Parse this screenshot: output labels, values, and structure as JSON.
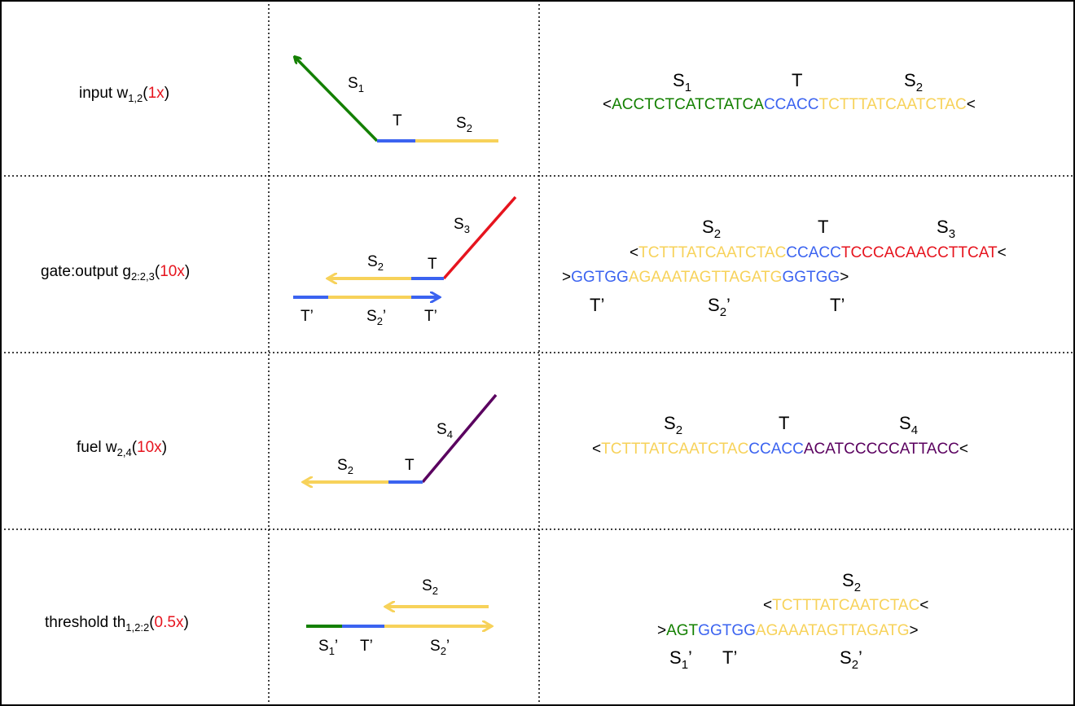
{
  "colors": {
    "green": "#138000",
    "blue": "#3b63f0",
    "yellow": "#f7d25a",
    "red": "#e6141e",
    "purple": "#5a005f",
    "black": "#000000"
  },
  "rows": [
    {
      "name": {
        "prefix": "input  w",
        "sub": "1,2",
        "open": "(",
        "mult": "1x",
        "close": ")"
      },
      "diagram_labels": {
        "s1": {
          "base": "S",
          "sub": "1"
        },
        "t": {
          "base": "T"
        },
        "s2": {
          "base": "S",
          "sub": "2"
        }
      },
      "seq_headers": {
        "a": {
          "base": "S",
          "sub": "1"
        },
        "b": {
          "base": "T"
        },
        "c": {
          "base": "S",
          "sub": "2"
        }
      },
      "sequence": {
        "start": "<",
        "green": "ACCTCTCATCTATCA",
        "blue": "CCACC",
        "yellow": "TCTTTATCAATCTAC",
        "end": "<"
      }
    },
    {
      "name": {
        "prefix": "gate:output  g",
        "sub": "2:2,3",
        "open": "(",
        "mult": "10x",
        "close": ")"
      },
      "diagram_labels": {
        "s3": {
          "base": "S",
          "sub": "3"
        },
        "s2": {
          "base": "S",
          "sub": "2"
        },
        "t": {
          "base": "T"
        },
        "tp1": {
          "base": "T’"
        },
        "s2p": {
          "base": "S",
          "sub": "2",
          "post": "’"
        },
        "tp2": {
          "base": "T’"
        }
      },
      "seq_headers": {
        "a": {
          "base": "S",
          "sub": "2"
        },
        "b": {
          "base": "T"
        },
        "c": {
          "base": "S",
          "sub": "3"
        }
      },
      "sequence_top": {
        "start": "<",
        "yellow": "TCTTTATCAATCTAC",
        "blue": "CCACC",
        "red": "TCCCACAACCTTCAT",
        "end": "<"
      },
      "sequence_bottom": {
        "start": ">",
        "blue1": "GGTGG",
        "yellow": "AGAAATAGTTAGATG",
        "blue2": "GGTGG",
        "end": ">"
      },
      "seq_footers": {
        "a": {
          "base": "T’"
        },
        "b": {
          "base": "S",
          "sub": "2",
          "post": "’"
        },
        "c": {
          "base": "T’"
        }
      }
    },
    {
      "name": {
        "prefix": "fuel  w",
        "sub": "2,4",
        "open": "(",
        "mult": "10x",
        "close": ")"
      },
      "diagram_labels": {
        "s4": {
          "base": "S",
          "sub": "4"
        },
        "s2": {
          "base": "S",
          "sub": "2"
        },
        "t": {
          "base": "T"
        }
      },
      "seq_headers": {
        "a": {
          "base": "S",
          "sub": "2"
        },
        "b": {
          "base": "T"
        },
        "c": {
          "base": "S",
          "sub": "4"
        }
      },
      "sequence": {
        "start": "<",
        "yellow": "TCTTTATCAATCTAC",
        "blue": "CCACC",
        "purple": "ACATCCCCCATTACC",
        "end": "<"
      }
    },
    {
      "name": {
        "prefix": "threshold  th",
        "sub": "1,2:2",
        "open": "(",
        "mult": "0.5x",
        "close": ")"
      },
      "diagram_labels": {
        "s2": {
          "base": "S",
          "sub": "2"
        },
        "s1p": {
          "base": "S",
          "sub": "1",
          "post": "’"
        },
        "tp": {
          "base": "T’"
        },
        "s2p": {
          "base": "S",
          "sub": "2",
          "post": "’"
        }
      },
      "seq_headers": {
        "a": {
          "base": "S",
          "sub": "2"
        }
      },
      "sequence_top": {
        "start": "<",
        "yellow": "TCTTTATCAATCTAC",
        "end": "<"
      },
      "sequence_bottom": {
        "start": ">",
        "green": "AGT",
        "blue": "GGTGG",
        "yellow": "AGAAATAGTTAGATG",
        "end": ">"
      },
      "seq_footers": {
        "a": {
          "base": "S",
          "sub": "1",
          "post": "’"
        },
        "b": {
          "base": "T’"
        },
        "c": {
          "base": "S",
          "sub": "2",
          "post": "’"
        }
      }
    }
  ]
}
